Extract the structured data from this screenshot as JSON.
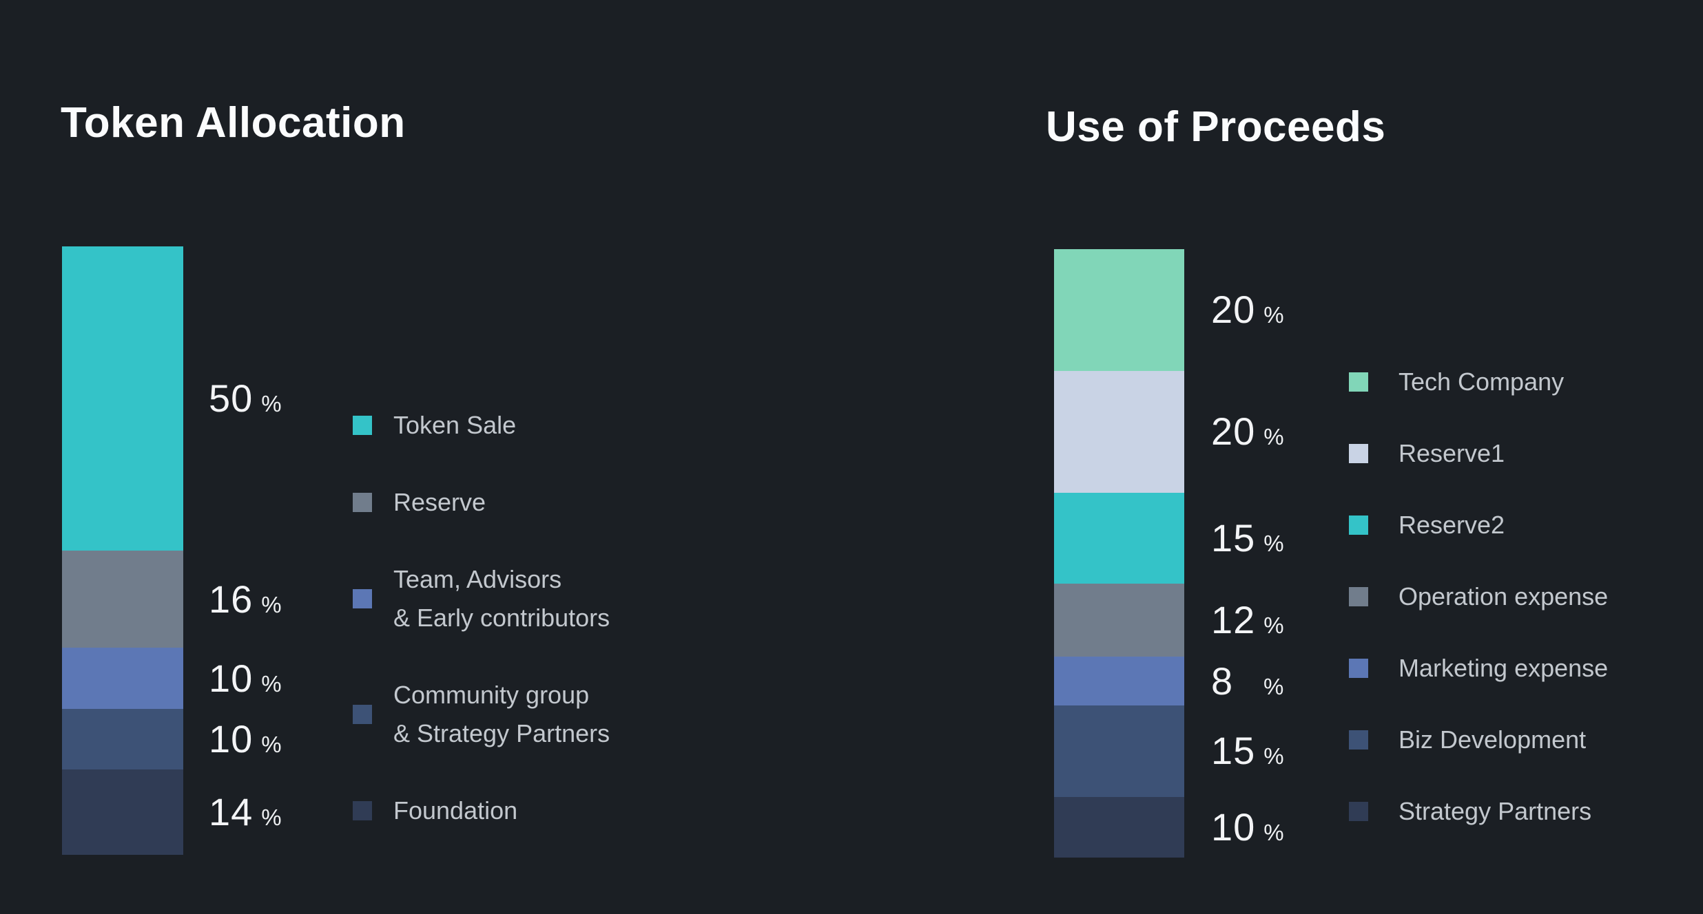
{
  "background_color": "#1b1f24",
  "text_colors": {
    "title": "#fbfcfd",
    "percent": "#f3f4f6",
    "legend": "#c3c8ce"
  },
  "charts": [
    {
      "title": "Token Allocation",
      "chart_data": {
        "type": "bar",
        "subtype": "single-stacked-vertical-bar",
        "unit": "%",
        "total": 100,
        "grid": false,
        "legend_position": "right",
        "value_labels_position": "right-of-bar",
        "segments": [
          {
            "label": "Token Sale",
            "value": 50,
            "color": "#34c3c8"
          },
          {
            "label": "Reserve",
            "value": 16,
            "color": "#717d8c"
          },
          {
            "label": "Team, Advisors\n& Early contributors",
            "value": 10,
            "color": "#5c77b5"
          },
          {
            "label": "Community group\n& Strategy Partners",
            "value": 10,
            "color": "#3d5276"
          },
          {
            "label": "Foundation",
            "value": 14,
            "color": "#303c55"
          }
        ]
      }
    },
    {
      "title": "Use of Proceeds",
      "chart_data": {
        "type": "bar",
        "subtype": "single-stacked-vertical-bar",
        "unit": "%",
        "total": 100,
        "grid": false,
        "legend_position": "right",
        "value_labels_position": "right-of-bar",
        "segments": [
          {
            "label": "Tech Company",
            "value": 20,
            "color": "#81d6b8"
          },
          {
            "label": "Reserve1",
            "value": 20,
            "color": "#c9d3e5"
          },
          {
            "label": "Reserve2",
            "value": 15,
            "color": "#34c3c8"
          },
          {
            "label": "Operation expense",
            "value": 12,
            "color": "#717d8c"
          },
          {
            "label": "Marketing expense",
            "value": 8,
            "color": "#5c77b5"
          },
          {
            "label": "Biz Development",
            "value": 15,
            "color": "#3d5276"
          },
          {
            "label": "Strategy Partners",
            "value": 10,
            "color": "#303c55"
          }
        ]
      }
    }
  ]
}
